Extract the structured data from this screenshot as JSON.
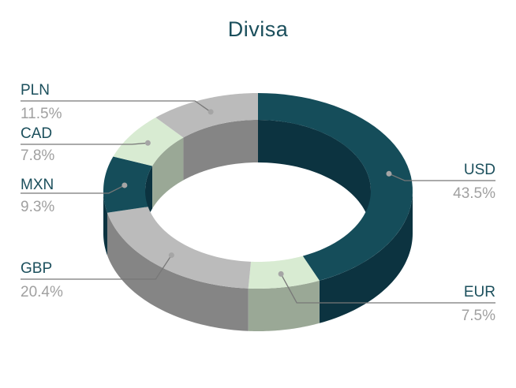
{
  "chart_data": {
    "type": "pie",
    "subtype": "3d-donut",
    "title": "Divisa",
    "categories": [
      "USD",
      "EUR",
      "GBP",
      "MXN",
      "CAD",
      "PLN"
    ],
    "values": [
      43.5,
      7.5,
      20.4,
      9.3,
      7.8,
      11.5
    ],
    "value_labels": [
      "43.5%",
      "7.5%",
      "20.4%",
      "9.3%",
      "7.8%",
      "11.5%"
    ],
    "colors": [
      "#154d5a",
      "#d8ebd2",
      "#bbbbbb",
      "#154d5a",
      "#d8ebd2",
      "#bbbbbb"
    ],
    "side_colors": [
      "#0c3340",
      "#9aa896",
      "#858585",
      "#0c3340",
      "#9aa896",
      "#858585"
    ],
    "label_name_color": "#1b4f5c",
    "label_pct_color": "#a0a0a0",
    "legend": "none"
  }
}
